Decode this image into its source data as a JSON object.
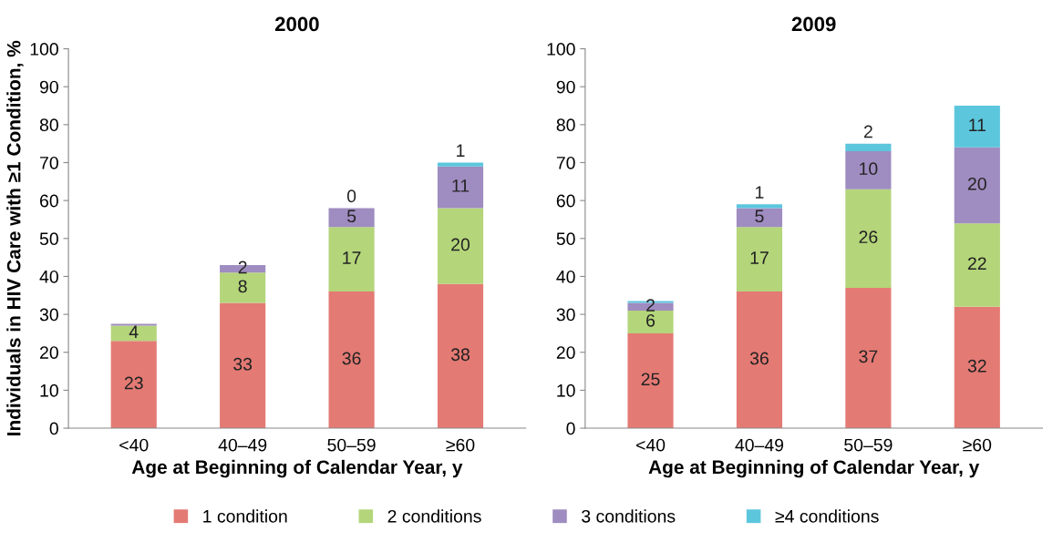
{
  "chart_data": [
    {
      "type": "bar",
      "title": "2000",
      "xlabel": "Age at Beginning of Calendar Year, y",
      "ylabel": "Individuals in HIV Care with ≥1 Condition, %",
      "categories": [
        "<40",
        "40–49",
        "50–59",
        "≥60"
      ],
      "stacked": true,
      "ylim": [
        0,
        100
      ],
      "yticks": [
        0,
        10,
        20,
        30,
        40,
        50,
        60,
        70,
        80,
        90,
        100
      ],
      "grid": false,
      "legend": "bottom",
      "series": [
        {
          "name": "1 condition",
          "color": "#e47a74",
          "values": [
            23,
            33,
            36,
            38
          ],
          "value_labels": [
            "23",
            "33",
            "36",
            "38"
          ]
        },
        {
          "name": "2 conditions",
          "color": "#b4d57a",
          "values": [
            4,
            8,
            17,
            20
          ],
          "value_labels": [
            "4",
            "8",
            "17",
            "20"
          ]
        },
        {
          "name": "3 conditions",
          "color": "#9f8cc0",
          "values": [
            0.5,
            2,
            5,
            11
          ],
          "value_labels": [
            null,
            "2",
            "5",
            "11"
          ]
        },
        {
          "name": "≥4 conditions",
          "color": "#5cc6dd",
          "values": [
            null,
            null,
            0,
            1
          ],
          "value_labels": [
            null,
            null,
            "0",
            "1"
          ]
        }
      ]
    },
    {
      "type": "bar",
      "title": "2009",
      "xlabel": "Age at Beginning of Calendar Year, y",
      "categories": [
        "<40",
        "40–49",
        "50–59",
        "≥60"
      ],
      "stacked": true,
      "ylim": [
        0,
        100
      ],
      "yticks": [
        0,
        10,
        20,
        30,
        40,
        50,
        60,
        70,
        80,
        90,
        100
      ],
      "grid": false,
      "series": [
        {
          "color": "#e47a74",
          "values": [
            25,
            36,
            37,
            32
          ],
          "value_labels": [
            "25",
            "36",
            "37",
            "32"
          ]
        },
        {
          "color": "#b4d57a",
          "values": [
            6,
            17,
            26,
            22
          ],
          "value_labels": [
            "6",
            "17",
            "26",
            "22"
          ]
        },
        {
          "color": "#9f8cc0",
          "values": [
            2,
            5,
            10,
            20
          ],
          "value_labels": [
            "2",
            "5",
            "10",
            "20"
          ]
        },
        {
          "color": "#5cc6dd",
          "values": [
            0.5,
            1,
            2,
            11
          ],
          "value_labels": [
            null,
            "1",
            "2",
            "11"
          ]
        }
      ]
    }
  ]
}
